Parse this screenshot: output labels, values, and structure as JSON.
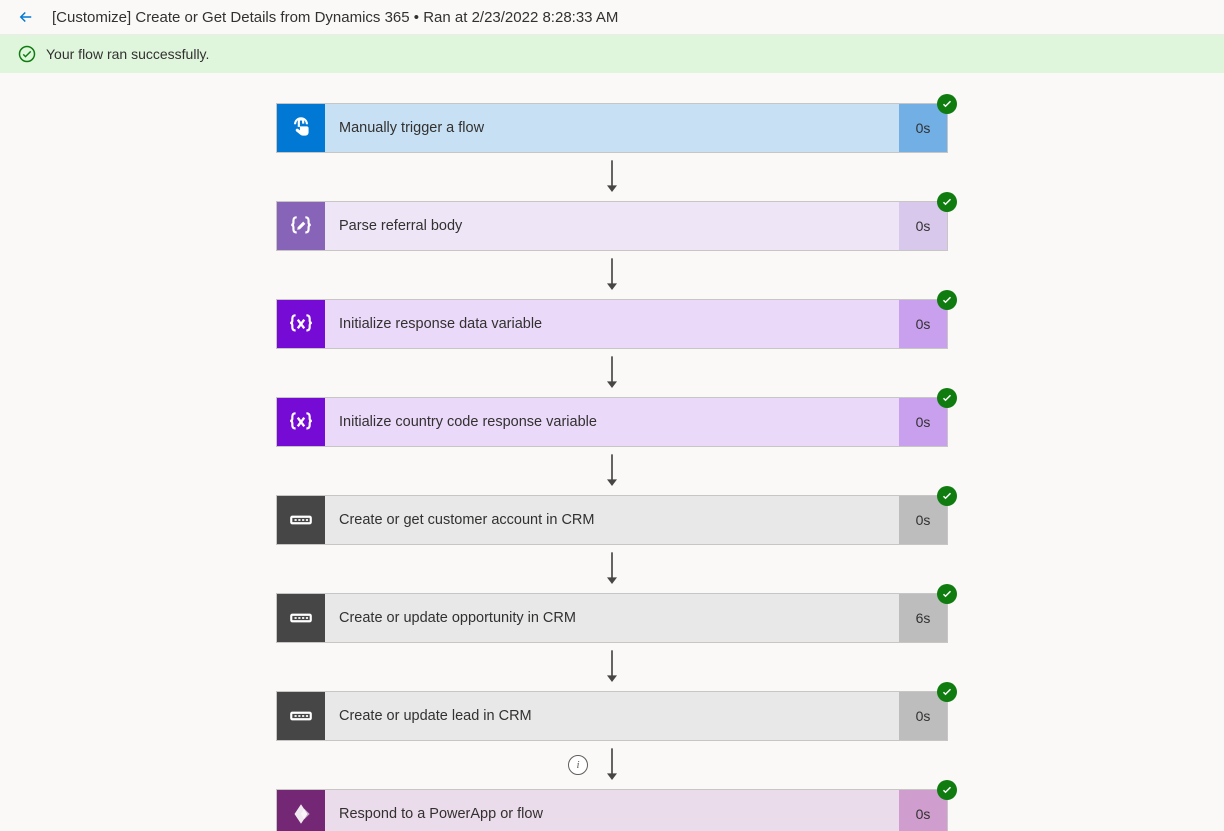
{
  "header": {
    "title": "[Customize] Create or Get Details from Dynamics 365 • Ran at 2/23/2022 8:28:33 AM"
  },
  "banner": {
    "message": "Your flow ran successfully.",
    "background": "#dff6dd",
    "icon_color": "#107c10"
  },
  "badge": {
    "background": "#107c10",
    "check_color": "#ffffff"
  },
  "arrow": {
    "color": "#484644"
  },
  "steps": [
    {
      "id": "trigger",
      "label": "Manually trigger a flow",
      "duration": "0s",
      "icon": "touch",
      "icon_bg": "#0078d4",
      "icon_fg": "#ffffff",
      "body_bg": "#c7e0f4",
      "duration_bg": "#71afe5",
      "has_info_before": false
    },
    {
      "id": "parse",
      "label": "Parse referral body",
      "duration": "0s",
      "icon": "braces-edit",
      "icon_bg": "#8764b8",
      "icon_fg": "#ffffff",
      "body_bg": "#eee6f7",
      "duration_bg": "#d8c8ec",
      "has_info_before": false
    },
    {
      "id": "init-response",
      "label": "Initialize response data variable",
      "duration": "0s",
      "icon": "variable",
      "icon_bg": "#770bd6",
      "icon_fg": "#ffffff",
      "body_bg": "#ebd9fa",
      "duration_bg": "#c9a0ee",
      "has_info_before": false
    },
    {
      "id": "init-country",
      "label": "Initialize country code response variable",
      "duration": "0s",
      "icon": "variable",
      "icon_bg": "#770bd6",
      "icon_fg": "#ffffff",
      "body_bg": "#ebd9fa",
      "duration_bg": "#c9a0ee",
      "has_info_before": false
    },
    {
      "id": "create-account",
      "label": "Create or get customer account in CRM",
      "duration": "0s",
      "icon": "scope",
      "icon_bg": "#464646",
      "icon_fg": "#ffffff",
      "body_bg": "#e8e8e8",
      "duration_bg": "#bdbdbd",
      "has_info_before": false
    },
    {
      "id": "create-opportunity",
      "label": "Create or update opportunity in CRM",
      "duration": "6s",
      "icon": "scope",
      "icon_bg": "#464646",
      "icon_fg": "#ffffff",
      "body_bg": "#e8e8e8",
      "duration_bg": "#bdbdbd",
      "has_info_before": false
    },
    {
      "id": "create-lead",
      "label": "Create or update lead in CRM",
      "duration": "0s",
      "icon": "scope",
      "icon_bg": "#464646",
      "icon_fg": "#ffffff",
      "body_bg": "#e8e8e8",
      "duration_bg": "#bdbdbd",
      "has_info_before": false
    },
    {
      "id": "respond",
      "label": "Respond to a PowerApp or flow",
      "duration": "0s",
      "icon": "powerapps",
      "icon_bg": "#742774",
      "icon_fg": "#ffffff",
      "body_bg": "#ebdceb",
      "duration_bg": "#cf9ecf",
      "has_info_before": true
    }
  ]
}
